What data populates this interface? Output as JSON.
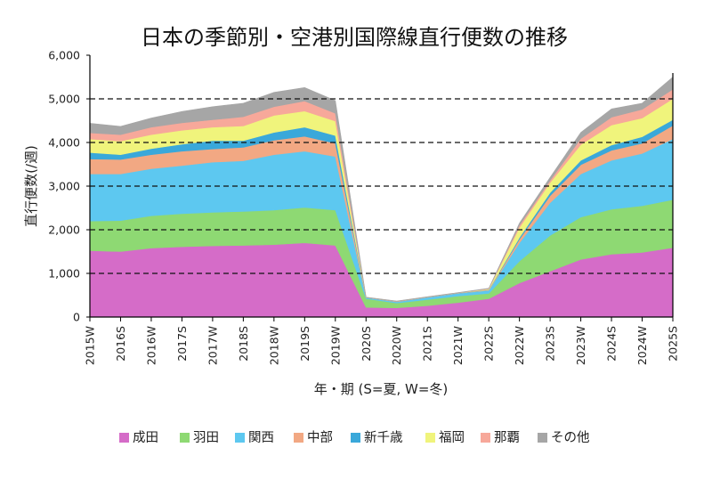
{
  "chart_data": {
    "type": "area",
    "stacked": true,
    "title": "日本の季節別・空港別国際線直行便数の推移",
    "xlabel": "年・期 (S=夏, W=冬)",
    "ylabel": "直行便数(/週)",
    "ylim": [
      0,
      6000
    ],
    "yticks": [
      0,
      1000,
      2000,
      3000,
      4000,
      5000,
      6000
    ],
    "ytick_labels": [
      "0",
      "1,000",
      "2,000",
      "3,000",
      "4,000",
      "5,000",
      "6,000"
    ],
    "gridlines": {
      "style": "dashed",
      "values": [
        1000,
        2000,
        3000,
        4000,
        5000
      ]
    },
    "legend_position": "bottom",
    "categories": [
      "2015W",
      "2016S",
      "2016W",
      "2017S",
      "2017W",
      "2018S",
      "2018W",
      "2019S",
      "2019W",
      "2020S",
      "2020W",
      "2021S",
      "2021W",
      "2022S",
      "2022W",
      "2023S",
      "2023W",
      "2024S",
      "2024W",
      "2025S"
    ],
    "series": [
      {
        "name": "成田",
        "color": "#d56cc8",
        "values": [
          1520,
          1500,
          1580,
          1610,
          1630,
          1640,
          1660,
          1700,
          1640,
          220,
          210,
          260,
          330,
          420,
          780,
          1050,
          1320,
          1440,
          1480,
          1590
        ]
      },
      {
        "name": "羽田",
        "color": "#8ed973",
        "values": [
          680,
          710,
          740,
          760,
          770,
          780,
          790,
          810,
          810,
          200,
          110,
          140,
          150,
          120,
          500,
          820,
          970,
          1030,
          1070,
          1100
        ]
      },
      {
        "name": "関西",
        "color": "#5dc8f0",
        "values": [
          1080,
          1070,
          1080,
          1100,
          1150,
          1160,
          1270,
          1290,
          1230,
          20,
          30,
          50,
          60,
          70,
          420,
          750,
          990,
          1120,
          1200,
          1390
        ]
      },
      {
        "name": "中部",
        "color": "#f2a883",
        "values": [
          340,
          330,
          320,
          330,
          300,
          310,
          330,
          340,
          300,
          5,
          5,
          5,
          5,
          10,
          80,
          160,
          210,
          230,
          230,
          310
        ]
      },
      {
        "name": "新千歳",
        "color": "#3aa8da",
        "values": [
          150,
          110,
          140,
          160,
          190,
          150,
          180,
          210,
          180,
          3,
          2,
          3,
          3,
          5,
          40,
          70,
          100,
          120,
          150,
          130
        ]
      },
      {
        "name": "福岡",
        "color": "#f0f47c",
        "values": [
          310,
          310,
          320,
          320,
          310,
          340,
          390,
          370,
          330,
          2,
          3,
          2,
          4,
          15,
          230,
          230,
          360,
          460,
          430,
          480
        ]
      },
      {
        "name": "那覇",
        "color": "#f7a89a",
        "values": [
          140,
          150,
          170,
          170,
          170,
          210,
          200,
          230,
          180,
          2,
          2,
          2,
          3,
          10,
          50,
          50,
          140,
          180,
          200,
          220
        ]
      },
      {
        "name": "その他",
        "color": "#a6a6a6",
        "values": [
          220,
          190,
          210,
          260,
          300,
          310,
          330,
          310,
          290,
          3,
          3,
          3,
          5,
          10,
          50,
          70,
          140,
          190,
          140,
          280
        ]
      }
    ]
  }
}
